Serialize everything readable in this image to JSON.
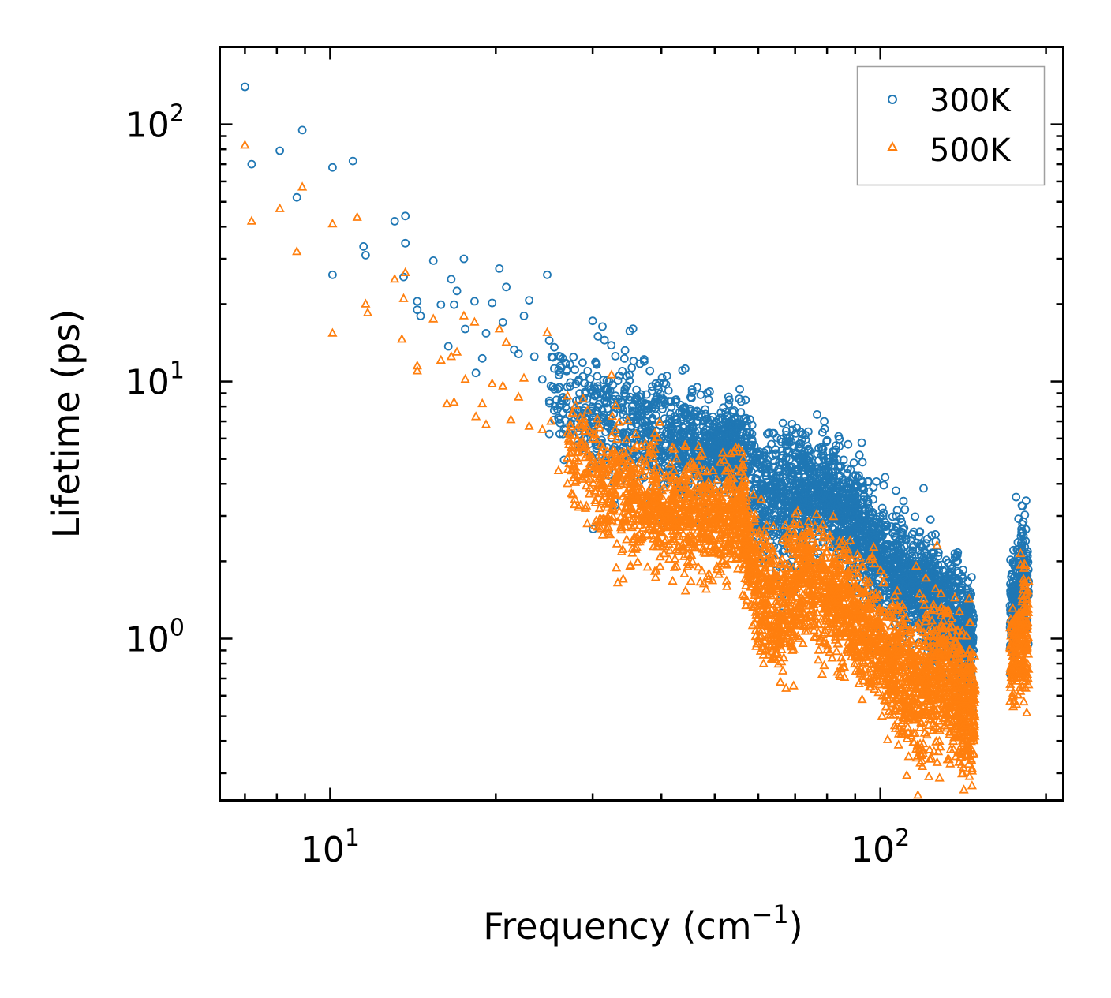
{
  "chart_data": {
    "type": "scatter",
    "title": "",
    "xlabel": "Frequency (cm",
    "xlabel_sup": "−1",
    "xlabel_close": ")",
    "ylabel": "Lifetime (ps)",
    "xscale": "log",
    "yscale": "log",
    "xlim": [
      6.3,
      215
    ],
    "ylim": [
      0.235,
      200
    ],
    "x_ticks": [
      {
        "value": 10,
        "base": "10",
        "exp": "1"
      },
      {
        "value": 100,
        "base": "10",
        "exp": "2"
      }
    ],
    "y_ticks": [
      {
        "value": 1,
        "base": "10",
        "exp": "0"
      },
      {
        "value": 10,
        "base": "10",
        "exp": "1"
      },
      {
        "value": 100,
        "base": "10",
        "exp": "2"
      }
    ],
    "legend_position": "top-right",
    "series": [
      {
        "name": "300K",
        "marker": "circle",
        "color": "#1f77b4",
        "points": [
          [
            7.0,
            140
          ],
          [
            7.2,
            70
          ],
          [
            8.1,
            79
          ],
          [
            8.7,
            52
          ],
          [
            8.9,
            95
          ],
          [
            10.1,
            68
          ],
          [
            10.1,
            26
          ],
          [
            11.0,
            72
          ],
          [
            11.5,
            33.5
          ],
          [
            11.6,
            31
          ],
          [
            13.1,
            42
          ],
          [
            13.7,
            44
          ],
          [
            13.7,
            34.5
          ],
          [
            13.6,
            25.5
          ],
          [
            14.4,
            20.5
          ],
          [
            14.4,
            19
          ],
          [
            14.6,
            18
          ],
          [
            15.4,
            29.5
          ],
          [
            15.9,
            19.9
          ],
          [
            16.4,
            13.7
          ],
          [
            16.6,
            25
          ],
          [
            16.8,
            19.9
          ],
          [
            17.0,
            22.5
          ],
          [
            17.5,
            30
          ],
          [
            17.6,
            16
          ],
          [
            18.3,
            20.5
          ],
          [
            18.4,
            10.8
          ],
          [
            18.9,
            12.3
          ],
          [
            19.2,
            15.4
          ],
          [
            19.7,
            20.2
          ],
          [
            20.3,
            27.5
          ],
          [
            20.6,
            17
          ],
          [
            20.9,
            23.3
          ],
          [
            21.6,
            13.3
          ],
          [
            22.0,
            12.8
          ],
          [
            22.5,
            18
          ],
          [
            23.0,
            20.7
          ],
          [
            23.5,
            12.5
          ],
          [
            24.3,
            10.2
          ],
          [
            24.8,
            26
          ],
          [
            25.4,
            12.4
          ]
        ],
        "bands": [
          [
            25,
            9.0,
            1.25,
            120
          ],
          [
            30,
            7.6,
            1.35,
            180
          ],
          [
            36,
            6.7,
            1.3,
            220
          ],
          [
            43,
            5.6,
            1.25,
            260
          ],
          [
            50,
            5.3,
            1.2,
            260
          ],
          [
            55,
            5.6,
            1.3,
            140
          ],
          [
            60,
            3.6,
            1.3,
            180
          ],
          [
            66,
            3.4,
            1.35,
            200
          ],
          [
            72,
            3.9,
            1.3,
            220
          ],
          [
            80,
            3.5,
            1.3,
            240
          ],
          [
            88,
            2.9,
            1.3,
            220
          ],
          [
            96,
            2.3,
            1.3,
            200
          ],
          [
            105,
            1.9,
            1.3,
            200
          ],
          [
            114,
            1.6,
            1.3,
            200
          ],
          [
            124,
            1.45,
            1.3,
            200
          ],
          [
            133,
            1.25,
            1.3,
            180
          ],
          [
            142,
            1.05,
            1.25,
            140
          ],
          [
            172,
            1.2,
            1.25,
            110
          ],
          [
            179,
            1.75,
            1.3,
            110
          ]
        ]
      },
      {
        "name": "500K",
        "marker": "triangle",
        "color": "#ff7f0e",
        "points": [
          [
            7.0,
            83
          ],
          [
            7.2,
            42
          ],
          [
            8.1,
            47
          ],
          [
            8.7,
            32
          ],
          [
            8.9,
            57
          ],
          [
            10.1,
            41
          ],
          [
            10.1,
            15.4
          ],
          [
            11.2,
            43.5
          ],
          [
            11.6,
            20
          ],
          [
            11.7,
            18.5
          ],
          [
            13.1,
            25
          ],
          [
            13.7,
            26.5
          ],
          [
            13.6,
            21
          ],
          [
            13.5,
            14.6
          ],
          [
            14.4,
            11.5
          ],
          [
            14.4,
            11
          ],
          [
            15.4,
            17.5
          ],
          [
            15.9,
            12.1
          ],
          [
            16.3,
            8.2
          ],
          [
            16.6,
            12.5
          ],
          [
            16.8,
            8.3
          ],
          [
            17.0,
            13
          ],
          [
            17.5,
            18
          ],
          [
            17.6,
            10.2
          ],
          [
            18.3,
            17
          ],
          [
            18.4,
            7.3
          ],
          [
            18.9,
            8.2
          ],
          [
            19.2,
            6.8
          ],
          [
            19.7,
            9.8
          ],
          [
            20.3,
            16
          ],
          [
            20.6,
            9.6
          ],
          [
            20.9,
            14.2
          ],
          [
            21.3,
            7.1
          ],
          [
            22.0,
            8.7
          ],
          [
            22.5,
            10.3
          ],
          [
            23.0,
            6.7
          ],
          [
            24.3,
            6.5
          ],
          [
            24.8,
            15.5
          ],
          [
            25.2,
            7.0
          ],
          [
            26.0,
            4.5
          ]
        ],
        "bands": [
          [
            27,
            5.7,
            1.3,
            120
          ],
          [
            31,
            4.2,
            1.35,
            200
          ],
          [
            36,
            3.4,
            1.3,
            240
          ],
          [
            42,
            3.05,
            1.28,
            260
          ],
          [
            49,
            2.9,
            1.25,
            260
          ],
          [
            56,
            3.0,
            1.3,
            200
          ],
          [
            60,
            1.55,
            1.35,
            180
          ],
          [
            65,
            1.25,
            1.35,
            180
          ],
          [
            71,
            1.7,
            1.3,
            220
          ],
          [
            79,
            1.55,
            1.3,
            240
          ],
          [
            88,
            1.25,
            1.32,
            220
          ],
          [
            97,
            1.0,
            1.32,
            200
          ],
          [
            106,
            0.8,
            1.35,
            200
          ],
          [
            115,
            0.62,
            1.4,
            200
          ],
          [
            125,
            0.7,
            1.4,
            200
          ],
          [
            135,
            0.65,
            1.38,
            180
          ],
          [
            143,
            0.55,
            1.35,
            140
          ],
          [
            172,
            0.75,
            1.25,
            110
          ],
          [
            179,
            1.05,
            1.3,
            110
          ]
        ]
      }
    ]
  }
}
